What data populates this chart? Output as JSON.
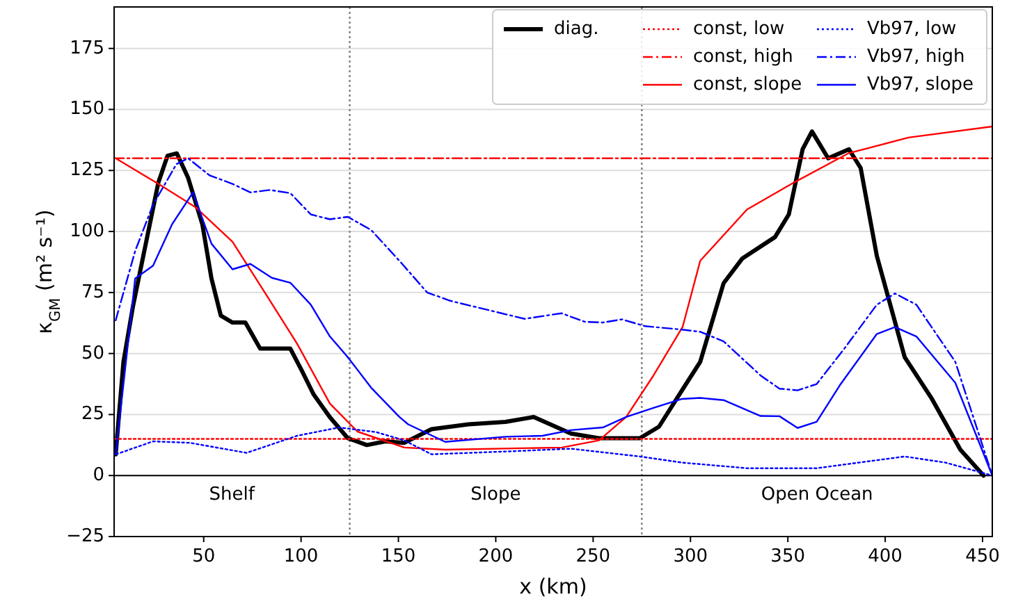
{
  "chart_data": {
    "type": "line",
    "xlabel": "x (km)",
    "ylabel": "κ$_{GM}$ (m² s⁻¹)",
    "xlim": [
      4,
      455
    ],
    "ylim": [
      -25,
      192
    ],
    "xticks": [
      50,
      100,
      150,
      200,
      250,
      300,
      350,
      400,
      450
    ],
    "yticks": [
      -25,
      0,
      25,
      50,
      75,
      100,
      125,
      150,
      175
    ],
    "grid": "y",
    "legend": "top right",
    "ref_lines": [
      {
        "axis": "x",
        "value": 125,
        "color": "#808080",
        "line_style": "dotted"
      },
      {
        "axis": "x",
        "value": 275,
        "color": "#808080",
        "line_style": "dotted"
      },
      {
        "axis": "y",
        "value": 0,
        "color": "#000000",
        "line_style": "solid"
      }
    ],
    "annotations": [
      "Shelf",
      "Slope",
      "Open Ocean"
    ],
    "series": [
      {
        "name": "diag.",
        "color": "#000000",
        "line_style": "solid",
        "x": [
          4.8,
          8.8,
          13.6,
          19.5,
          26.7,
          31.4,
          36.2,
          42,
          49.3,
          54,
          58.8,
          64.8,
          71.4,
          79,
          94.5,
          100.5,
          106.4,
          114.8,
          124,
          133.8,
          143.3,
          153,
          167,
          186,
          205,
          219.5,
          238.6,
          252.9,
          274,
          283.8,
          295.7,
          305,
          317,
          326.7,
          343.4,
          350.5,
          357.6,
          362.4,
          370.7,
          381.4,
          387.4,
          395.7,
          410,
          424,
          438.6,
          450.5
        ],
        "values": [
          8.7,
          46.6,
          69,
          92,
          120,
          131,
          132,
          122,
          103,
          80.7,
          65.5,
          62.7,
          62.7,
          52,
          52,
          42.8,
          33.3,
          23.9,
          15.3,
          12.5,
          14,
          13.4,
          19,
          21,
          22,
          24,
          17.2,
          15.3,
          15.3,
          20,
          35,
          46.6,
          78.8,
          89,
          97.7,
          107,
          133.7,
          141,
          130,
          133.7,
          126,
          90,
          48.5,
          31.4,
          10.6,
          0
        ]
      },
      {
        "name": "const, low",
        "color": "#ff0000",
        "line_style": "dotted",
        "x": [
          4,
          455
        ],
        "values": [
          15,
          15
        ]
      },
      {
        "name": "const, high",
        "color": "#ff0000",
        "line_style": "dashdot",
        "x": [
          4,
          455
        ],
        "values": [
          130,
          130
        ]
      },
      {
        "name": "const, slope",
        "color": "#ff0000",
        "line_style": "solid",
        "x": [
          4.8,
          26.7,
          45.7,
          64.8,
          81.4,
          98,
          114.8,
          129,
          153,
          174,
          234,
          253,
          267,
          281,
          296,
          305,
          329,
          353,
          381,
          412,
          455
        ],
        "values": [
          130,
          119.5,
          110,
          95.8,
          75,
          54,
          29.5,
          18,
          11.5,
          10.6,
          11.5,
          14.4,
          24,
          41,
          61,
          88,
          109,
          120,
          132,
          138.5,
          143
        ]
      },
      {
        "name": "Vb97, low",
        "color": "#0000ff",
        "line_style": "dotted",
        "x": [
          5,
          24,
          43,
          72,
          98,
          119.5,
          138.6,
          153,
          167,
          210,
          238.6,
          274,
          295.7,
          329,
          364.8,
          410,
          431,
          455
        ],
        "values": [
          8.7,
          14,
          13.4,
          9.3,
          16.3,
          19.7,
          17.8,
          14.4,
          8.7,
          10,
          11,
          7.8,
          5.3,
          3,
          3,
          7.8,
          5.3,
          0
        ]
      },
      {
        "name": "Vb97, high",
        "color": "#0000ff",
        "line_style": "dashdot",
        "x": [
          4.8,
          14.8,
          24,
          36,
          42,
          53,
          64.8,
          74,
          84,
          94.5,
          105,
          114.8,
          124,
          136,
          150.5,
          164.8,
          176.6,
          214.8,
          233.8,
          245.7,
          255,
          264.8,
          276.7,
          295.7,
          305,
          317,
          336,
          345.7,
          355,
          364.8,
          379,
          395.7,
          405,
          416,
          436,
          455
        ],
        "values": [
          63.6,
          92,
          111,
          127.6,
          130,
          123,
          119.5,
          116,
          117,
          115.7,
          107,
          105,
          106,
          100.6,
          88,
          75,
          71.6,
          64.2,
          66.5,
          63,
          62.7,
          64,
          61.2,
          59.8,
          58.9,
          55,
          41,
          35.6,
          34.9,
          37.5,
          52,
          70,
          74.6,
          70,
          46.6,
          0
        ]
      },
      {
        "name": "Vb97, slope",
        "color": "#0000ff",
        "line_style": "solid",
        "x": [
          4.8,
          14.8,
          24,
          33.8,
          44.5,
          54,
          64.8,
          74,
          85,
          94.5,
          105,
          114.8,
          124,
          136,
          150.5,
          155,
          174,
          205,
          224,
          238.6,
          255,
          267,
          281,
          295.7,
          305,
          317,
          336,
          345.7,
          355,
          364.8,
          376.7,
          395.7,
          405,
          416,
          436,
          455
        ],
        "values": [
          8.7,
          80.7,
          86,
          103,
          116,
          95,
          84.5,
          86.7,
          81,
          79,
          70,
          57,
          48.5,
          36,
          24,
          21,
          13.8,
          15.9,
          16.3,
          18.6,
          19.7,
          24,
          27.7,
          31.4,
          31.8,
          30.9,
          24.4,
          24.3,
          19.5,
          22,
          37,
          58,
          60.8,
          57,
          38,
          0
        ]
      }
    ]
  }
}
